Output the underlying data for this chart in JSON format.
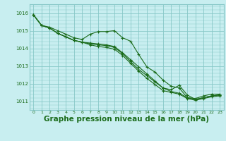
{
  "background_color": "#c8eef0",
  "grid_color": "#88c8c8",
  "line_color": "#1a6b1a",
  "xlabel": "Graphe pression niveau de la mer (hPa)",
  "xlabel_fontsize": 7.5,
  "tick_label_color": "#1a6b1a",
  "ylim": [
    1010.5,
    1016.5
  ],
  "xlim": [
    -0.5,
    23.5
  ],
  "yticks": [
    1011,
    1012,
    1013,
    1014,
    1015,
    1016
  ],
  "xticks": [
    0,
    1,
    2,
    3,
    4,
    5,
    6,
    7,
    8,
    9,
    10,
    11,
    12,
    13,
    14,
    15,
    16,
    17,
    18,
    19,
    20,
    21,
    22,
    23
  ],
  "series": [
    [
      1015.9,
      1015.3,
      1015.2,
      1015.0,
      1014.8,
      1014.6,
      1014.5,
      1014.8,
      1014.95,
      1014.95,
      1015.0,
      1014.6,
      1014.4,
      1013.65,
      1012.95,
      1012.65,
      1012.2,
      1011.85,
      1011.75,
      1011.2,
      1011.15,
      1011.3,
      1011.4,
      1011.4
    ],
    [
      1015.9,
      1015.3,
      1015.15,
      1014.85,
      1014.65,
      1014.45,
      1014.35,
      1014.3,
      1014.25,
      1014.2,
      1014.1,
      1013.75,
      1013.35,
      1012.95,
      1012.55,
      1012.15,
      1011.75,
      1011.55,
      1011.45,
      1011.2,
      1011.1,
      1011.2,
      1011.3,
      1011.35
    ],
    [
      1015.9,
      1015.3,
      1015.15,
      1014.85,
      1014.65,
      1014.45,
      1014.35,
      1014.25,
      1014.2,
      1014.15,
      1014.05,
      1013.7,
      1013.25,
      1012.8,
      1012.45,
      1012.1,
      1011.75,
      1011.65,
      1011.9,
      1011.35,
      1011.1,
      1011.2,
      1011.3,
      1011.35
    ],
    [
      1015.9,
      1015.3,
      1015.15,
      1014.85,
      1014.65,
      1014.45,
      1014.35,
      1014.2,
      1014.1,
      1014.05,
      1013.95,
      1013.6,
      1013.15,
      1012.7,
      1012.3,
      1011.95,
      1011.6,
      1011.5,
      1011.4,
      1011.15,
      1011.05,
      1011.15,
      1011.25,
      1011.3
    ]
  ]
}
